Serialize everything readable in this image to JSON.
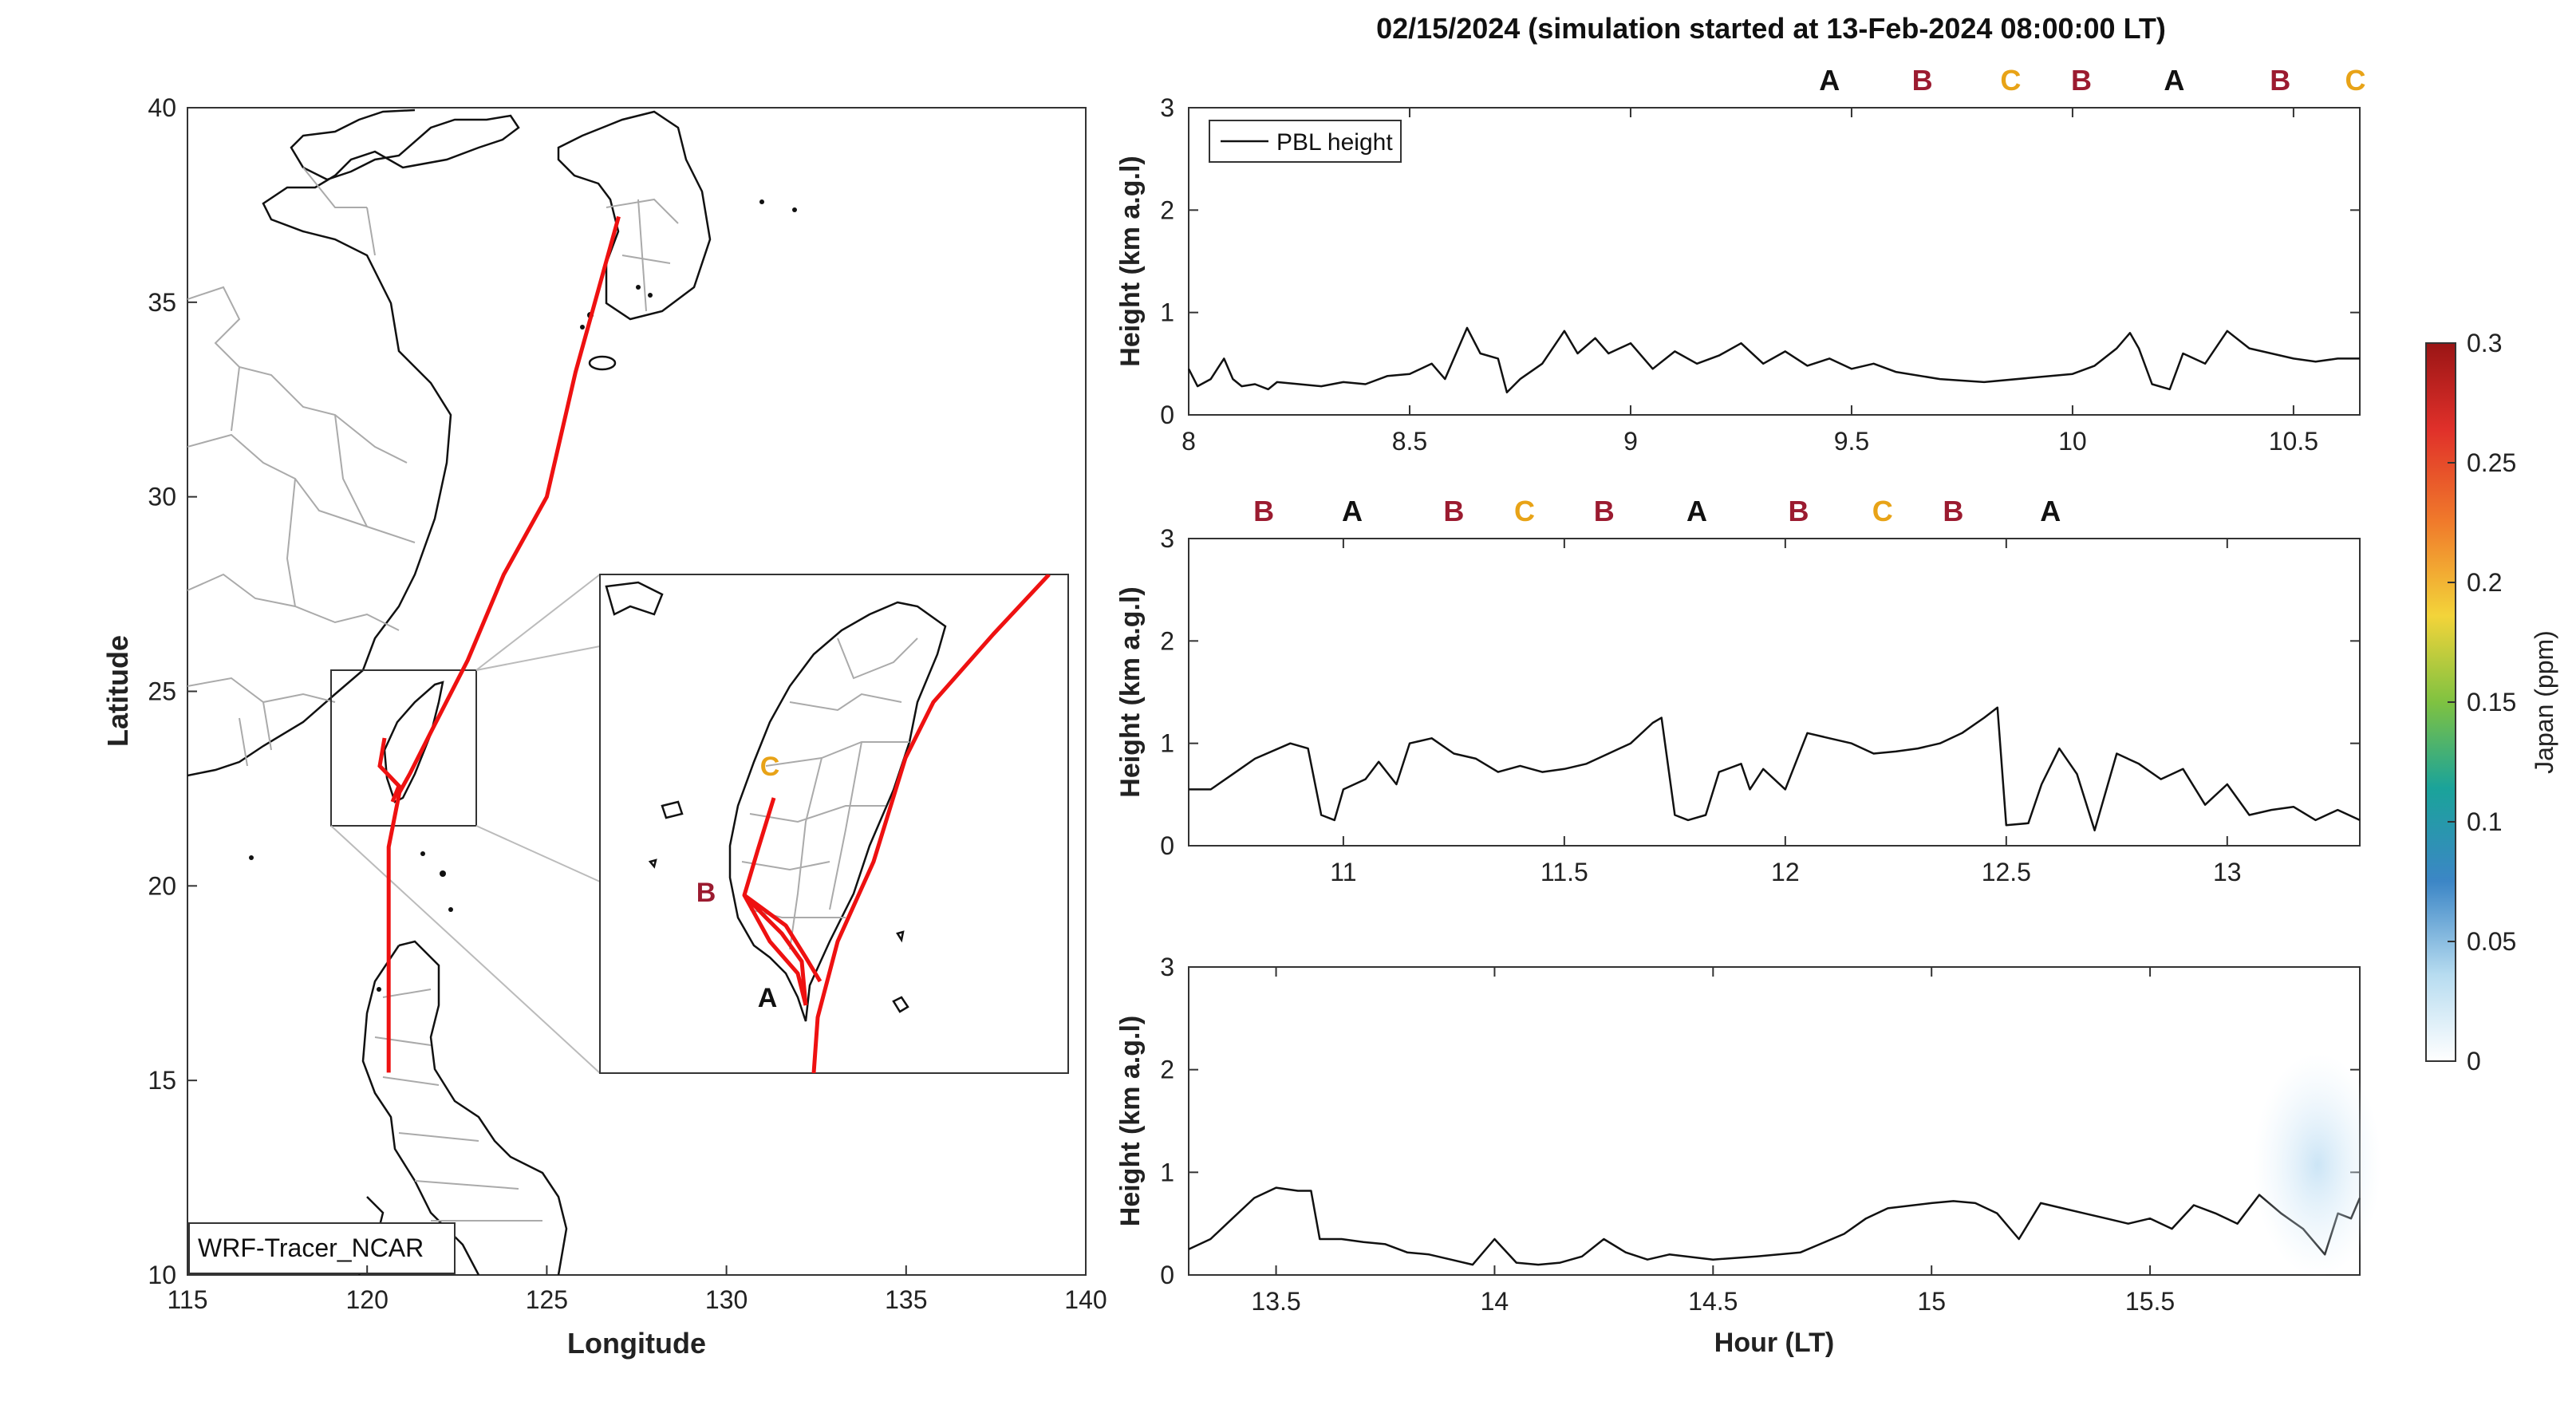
{
  "figure": {
    "title": "02/15/2024 (simulation started at 13-Feb-2024 08:00:00 LT)"
  },
  "map": {
    "xlabel": "Longitude",
    "ylabel": "Latitude",
    "xticks": [
      115,
      120,
      125,
      130,
      135,
      140
    ],
    "yticks": [
      10,
      15,
      20,
      25,
      30,
      35,
      40
    ],
    "xlim": [
      115,
      140
    ],
    "ylim": [
      10,
      40
    ],
    "model_label": "WRF-Tracer_NCAR",
    "inset_box": {
      "lon": [
        119.0,
        123.0
      ],
      "lat": [
        21.5,
        26.5
      ]
    },
    "trajectory_color": "#ee1111",
    "trajectory": [
      [
        127.0,
        37.2
      ],
      [
        125.8,
        33.2
      ],
      [
        125.0,
        30.0
      ],
      [
        123.8,
        28.0
      ],
      [
        122.8,
        25.8
      ],
      [
        121.8,
        24.0
      ],
      [
        121.2,
        22.9
      ],
      [
        120.9,
        22.4
      ],
      [
        120.6,
        21.0
      ],
      [
        120.6,
        18.5
      ],
      [
        120.6,
        16.5
      ],
      [
        120.6,
        15.2
      ]
    ],
    "inset_points": {
      "A": {
        "label": "A",
        "color": "#111111"
      },
      "B": {
        "label": "B",
        "color": "#9b1b30"
      },
      "C": {
        "label": "C",
        "color": "#e8a317"
      }
    }
  },
  "colorbar": {
    "label": "Japan (ppm)",
    "ticks": [
      "0",
      "0.05",
      "0.1",
      "0.15",
      "0.2",
      "0.25",
      "0.3"
    ],
    "range": [
      0,
      0.3
    ]
  },
  "chart_data": [
    {
      "type": "line",
      "xlim": [
        8,
        10.65
      ],
      "ylim": [
        0,
        3
      ],
      "xticks": [
        "8",
        "8.5",
        "9",
        "9.5",
        "10",
        "10.5"
      ],
      "yticks": [
        "0",
        "1",
        "2",
        "3"
      ],
      "ylabel": "Height (km a.g.l)",
      "legend": "PBL height",
      "legend_position": "top-left",
      "markers": [
        {
          "x": 9.45,
          "label": "A",
          "color": "#111111"
        },
        {
          "x": 9.66,
          "label": "B",
          "color": "#9b1b30"
        },
        {
          "x": 9.86,
          "label": "C",
          "color": "#e8a317"
        },
        {
          "x": 10.02,
          "label": "B",
          "color": "#9b1b30"
        },
        {
          "x": 10.23,
          "label": "A",
          "color": "#111111"
        },
        {
          "x": 10.47,
          "label": "B",
          "color": "#9b1b30"
        },
        {
          "x": 10.64,
          "label": "C",
          "color": "#e8a317"
        }
      ],
      "series": [
        {
          "name": "PBL height",
          "x": [
            8.0,
            8.02,
            8.05,
            8.08,
            8.1,
            8.12,
            8.15,
            8.18,
            8.2,
            8.25,
            8.3,
            8.35,
            8.4,
            8.45,
            8.5,
            8.55,
            8.58,
            8.6,
            8.63,
            8.66,
            8.7,
            8.72,
            8.75,
            8.8,
            8.85,
            8.88,
            8.92,
            8.95,
            9.0,
            9.05,
            9.1,
            9.15,
            9.2,
            9.25,
            9.3,
            9.35,
            9.4,
            9.45,
            9.5,
            9.55,
            9.6,
            9.7,
            9.8,
            9.9,
            10.0,
            10.05,
            10.1,
            10.13,
            10.15,
            10.18,
            10.22,
            10.25,
            10.3,
            10.35,
            10.4,
            10.45,
            10.5,
            10.55,
            10.6,
            10.65
          ],
          "y": [
            0.45,
            0.28,
            0.35,
            0.55,
            0.35,
            0.28,
            0.3,
            0.25,
            0.32,
            0.3,
            0.28,
            0.32,
            0.3,
            0.38,
            0.4,
            0.5,
            0.35,
            0.55,
            0.85,
            0.6,
            0.55,
            0.22,
            0.35,
            0.5,
            0.82,
            0.6,
            0.75,
            0.6,
            0.7,
            0.45,
            0.62,
            0.5,
            0.58,
            0.7,
            0.5,
            0.62,
            0.48,
            0.55,
            0.45,
            0.5,
            0.42,
            0.35,
            0.32,
            0.36,
            0.4,
            0.48,
            0.65,
            0.8,
            0.65,
            0.3,
            0.25,
            0.6,
            0.5,
            0.82,
            0.65,
            0.6,
            0.55,
            0.52,
            0.55,
            0.55
          ]
        }
      ]
    },
    {
      "type": "line",
      "xlim": [
        10.65,
        13.3
      ],
      "ylim": [
        0,
        3
      ],
      "xticks": [
        "11",
        "11.5",
        "12",
        "12.5",
        "13"
      ],
      "yticks": [
        "0",
        "1",
        "2",
        "3"
      ],
      "ylabel": "Height (km a.g.l)",
      "markers": [
        {
          "x": 10.82,
          "label": "B",
          "color": "#9b1b30"
        },
        {
          "x": 11.02,
          "label": "A",
          "color": "#111111"
        },
        {
          "x": 11.25,
          "label": "B",
          "color": "#9b1b30"
        },
        {
          "x": 11.41,
          "label": "C",
          "color": "#e8a317"
        },
        {
          "x": 11.59,
          "label": "B",
          "color": "#9b1b30"
        },
        {
          "x": 11.8,
          "label": "A",
          "color": "#111111"
        },
        {
          "x": 12.03,
          "label": "B",
          "color": "#9b1b30"
        },
        {
          "x": 12.22,
          "label": "C",
          "color": "#e8a317"
        },
        {
          "x": 12.38,
          "label": "B",
          "color": "#9b1b30"
        },
        {
          "x": 12.6,
          "label": "A",
          "color": "#111111"
        }
      ],
      "series": [
        {
          "name": "PBL height",
          "x": [
            10.65,
            10.7,
            10.75,
            10.8,
            10.88,
            10.92,
            10.95,
            10.98,
            11.0,
            11.05,
            11.08,
            11.12,
            11.15,
            11.2,
            11.25,
            11.3,
            11.35,
            11.4,
            11.45,
            11.5,
            11.55,
            11.6,
            11.65,
            11.7,
            11.72,
            11.75,
            11.78,
            11.82,
            11.85,
            11.9,
            11.92,
            11.95,
            12.0,
            12.05,
            12.1,
            12.15,
            12.2,
            12.25,
            12.3,
            12.35,
            12.4,
            12.45,
            12.48,
            12.5,
            12.55,
            12.58,
            12.62,
            12.66,
            12.7,
            12.75,
            12.8,
            12.85,
            12.9,
            12.95,
            13.0,
            13.05,
            13.1,
            13.15,
            13.2,
            13.25,
            13.3
          ],
          "y": [
            0.55,
            0.55,
            0.7,
            0.85,
            1.0,
            0.95,
            0.3,
            0.25,
            0.55,
            0.65,
            0.82,
            0.6,
            1.0,
            1.05,
            0.9,
            0.85,
            0.72,
            0.78,
            0.72,
            0.75,
            0.8,
            0.9,
            1.0,
            1.2,
            1.25,
            0.3,
            0.25,
            0.3,
            0.72,
            0.8,
            0.55,
            0.75,
            0.55,
            1.1,
            1.05,
            1.0,
            0.9,
            0.92,
            0.95,
            1.0,
            1.1,
            1.25,
            1.35,
            0.2,
            0.22,
            0.6,
            0.95,
            0.7,
            0.15,
            0.9,
            0.8,
            0.65,
            0.75,
            0.4,
            0.6,
            0.3,
            0.35,
            0.38,
            0.25,
            0.35,
            0.25
          ]
        }
      ]
    },
    {
      "type": "line",
      "xlim": [
        13.3,
        15.98
      ],
      "ylim": [
        0,
        3
      ],
      "xticks": [
        "13.5",
        "14",
        "14.5",
        "15",
        "15.5"
      ],
      "yticks": [
        "0",
        "1",
        "2",
        "3"
      ],
      "ylabel": "Height (km a.g.l)",
      "xlabel": "Hour (LT)",
      "series": [
        {
          "name": "PBL height",
          "x": [
            13.3,
            13.35,
            13.4,
            13.45,
            13.5,
            13.55,
            13.58,
            13.6,
            13.65,
            13.7,
            13.75,
            13.8,
            13.85,
            13.9,
            13.95,
            14.0,
            14.05,
            14.1,
            14.15,
            14.2,
            14.25,
            14.3,
            14.35,
            14.4,
            14.5,
            14.6,
            14.7,
            14.8,
            14.85,
            14.9,
            15.0,
            15.05,
            15.1,
            15.15,
            15.2,
            15.25,
            15.3,
            15.35,
            15.4,
            15.45,
            15.5,
            15.55,
            15.6,
            15.65,
            15.7,
            15.75,
            15.8,
            15.85,
            15.9,
            15.93,
            15.96,
            15.98
          ],
          "y": [
            0.25,
            0.35,
            0.55,
            0.75,
            0.85,
            0.82,
            0.82,
            0.35,
            0.35,
            0.32,
            0.3,
            0.22,
            0.2,
            0.15,
            0.1,
            0.35,
            0.12,
            0.1,
            0.12,
            0.18,
            0.35,
            0.22,
            0.15,
            0.2,
            0.15,
            0.18,
            0.22,
            0.4,
            0.55,
            0.65,
            0.7,
            0.72,
            0.7,
            0.6,
            0.35,
            0.7,
            0.65,
            0.6,
            0.55,
            0.5,
            0.55,
            0.45,
            0.68,
            0.6,
            0.5,
            0.78,
            0.6,
            0.45,
            0.2,
            0.6,
            0.55,
            0.75
          ]
        }
      ]
    }
  ]
}
